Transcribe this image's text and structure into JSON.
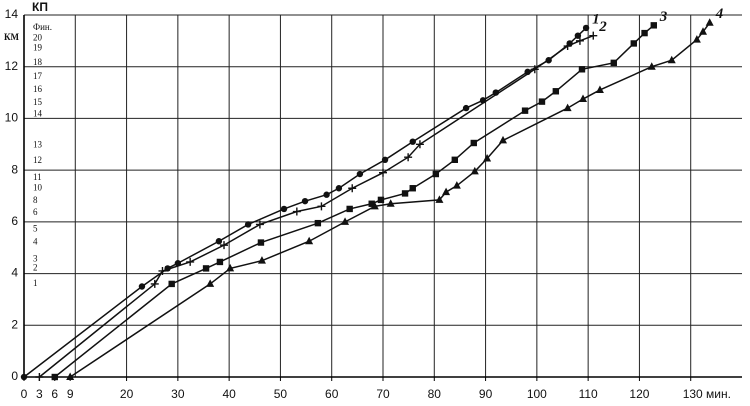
{
  "chart_data": {
    "type": "line",
    "ylabel": "КМ",
    "checkpoints_title": "КП",
    "xlim": [
      0,
      140
    ],
    "ylim": [
      0,
      14
    ],
    "xticks": [
      0,
      3,
      6,
      9,
      20,
      30,
      40,
      50,
      60,
      70,
      80,
      90,
      100,
      110,
      120,
      {
        "value": 130,
        "label": "130 мин."
      }
    ],
    "xgrid": [
      10,
      20,
      30,
      40,
      50,
      60,
      70,
      80,
      90,
      100,
      110,
      120,
      130
    ],
    "yticks": [
      0,
      2,
      4,
      6,
      8,
      10,
      12,
      14
    ],
    "grid": true,
    "checkpoints": [
      {
        "value": 3.6,
        "label": "1"
      },
      {
        "value": 4.2,
        "label": "2"
      },
      {
        "value": 4.55,
        "label": "3"
      },
      {
        "value": 5.2,
        "label": "4"
      },
      {
        "value": 5.7,
        "label": "5"
      },
      {
        "value": 6.35,
        "label": "6"
      },
      {
        "value": 6.8,
        "label": "8"
      },
      {
        "value": 7.3,
        "label": "10"
      },
      {
        "value": 7.7,
        "label": "11"
      },
      {
        "value": 8.35,
        "label": "12"
      },
      {
        "value": 8.95,
        "label": "13"
      },
      {
        "value": 10.15,
        "label": "14"
      },
      {
        "value": 10.6,
        "label": "15"
      },
      {
        "value": 11.1,
        "label": "16"
      },
      {
        "value": 11.6,
        "label": "17"
      },
      {
        "value": 12.15,
        "label": "18"
      },
      {
        "value": 12.7,
        "label": "19"
      },
      {
        "value": 13.1,
        "label": "20"
      },
      {
        "value": 13.5,
        "label": "Фин."
      }
    ],
    "series": [
      {
        "name": "1",
        "color": "#111",
        "marker": "circle",
        "x": [
          0,
          23,
          28,
          30,
          38,
          43.7,
          50.7,
          54.8,
          59,
          61.4,
          65.5,
          70.4,
          75.8,
          86.2,
          89.5,
          92,
          98.2,
          102.3,
          106.4,
          108,
          109.6
        ],
        "values": [
          0,
          3.5,
          4.2,
          4.4,
          5.25,
          5.9,
          6.5,
          6.8,
          7.05,
          7.3,
          7.85,
          8.4,
          9.1,
          10.4,
          10.7,
          11,
          11.8,
          12.25,
          12.9,
          13.2,
          13.5
        ]
      },
      {
        "name": "2",
        "color": "#111",
        "marker": "plus",
        "x": [
          3,
          25.5,
          27,
          32.4,
          39,
          46,
          53.2,
          58,
          64,
          70,
          74.9,
          77.2,
          99.6,
          106,
          108.4,
          111
        ],
        "values": [
          0,
          3.6,
          4.1,
          4.45,
          5.1,
          5.9,
          6.4,
          6.6,
          7.3,
          7.9,
          8.5,
          9,
          11.9,
          12.8,
          13,
          13.2
        ]
      },
      {
        "name": "3",
        "color": "#111",
        "marker": "square",
        "x": [
          6,
          28.8,
          35.5,
          38.2,
          46.2,
          57.3,
          63.5,
          67.8,
          69.6,
          74.3,
          75.8,
          80.3,
          84,
          87.7,
          97.7,
          101,
          103.7,
          108.8,
          115,
          118.9,
          121,
          122.8
        ],
        "values": [
          0,
          3.6,
          4.2,
          4.45,
          5.2,
          5.95,
          6.5,
          6.7,
          6.85,
          7.1,
          7.3,
          7.85,
          8.4,
          9.05,
          10.3,
          10.65,
          11.05,
          11.9,
          12.15,
          12.9,
          13.3,
          13.6
        ]
      },
      {
        "name": "4",
        "color": "#111",
        "marker": "triangle",
        "x": [
          9,
          36.3,
          40.2,
          46.4,
          55.6,
          62.6,
          68.4,
          71.5,
          81,
          82.3,
          84.4,
          87.9,
          90.3,
          93.4,
          106,
          109,
          112.3,
          122.4,
          126.3,
          131.2,
          132.4,
          133.7
        ],
        "values": [
          0,
          3.6,
          4.2,
          4.5,
          5.25,
          6,
          6.6,
          6.7,
          6.85,
          7.15,
          7.4,
          7.95,
          8.45,
          9.15,
          10.4,
          10.75,
          11.1,
          12,
          12.25,
          13.05,
          13.35,
          13.7
        ]
      }
    ]
  }
}
